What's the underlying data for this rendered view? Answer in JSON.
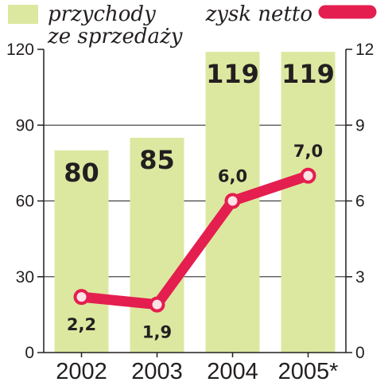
{
  "chart_data": {
    "type": "bar+line",
    "categories": [
      "2002",
      "2003",
      "2004",
      "2005*"
    ],
    "series": [
      {
        "name": "przychody ze sprzedaży",
        "type": "bar",
        "axis": "left",
        "values": [
          80,
          85,
          119,
          119
        ],
        "labels": [
          "80",
          "85",
          "119",
          "119"
        ]
      },
      {
        "name": "zysk netto",
        "type": "line",
        "axis": "right",
        "values": [
          2.2,
          1.9,
          6.0,
          7.0
        ],
        "labels": [
          "2,2",
          "1,9",
          "6,0",
          "7,0"
        ]
      }
    ],
    "legend": [
      {
        "lines": [
          "przychody",
          "ze sprzedaży"
        ]
      },
      {
        "lines": [
          "zysk netto"
        ]
      }
    ],
    "y_left": {
      "lim": [
        0,
        120
      ],
      "ticks": [
        "0",
        "30",
        "60",
        "90",
        "120"
      ]
    },
    "y_right": {
      "lim": [
        0,
        12
      ],
      "ticks": [
        "0",
        "3",
        "6",
        "9",
        "12"
      ]
    },
    "grid": true,
    "legend_position": "top",
    "colors": {
      "bar": "#dce8a0",
      "line": "#e41e4f",
      "marker_fill": "#fde2e6",
      "grid": "#231f20",
      "text": "#231f20"
    }
  }
}
